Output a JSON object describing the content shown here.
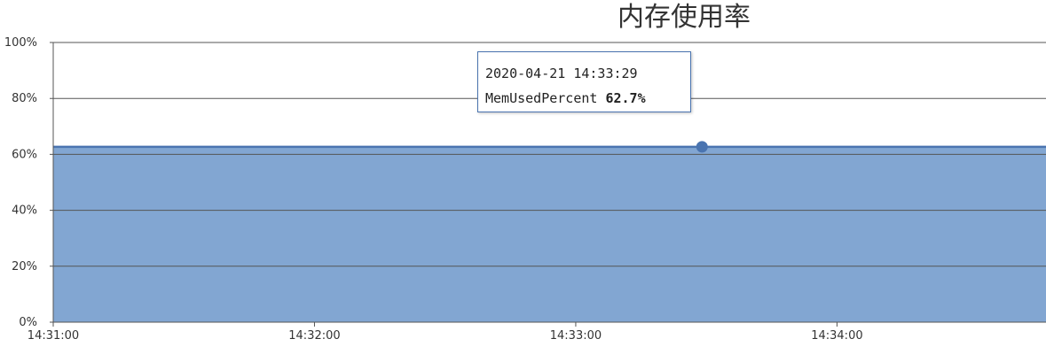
{
  "chart_data": {
    "type": "area",
    "title": "内存使用率",
    "x_ticks": [
      "14:31:00",
      "14:32:00",
      "14:33:00",
      "14:34:00"
    ],
    "y_ticks": [
      "0%",
      "20%",
      "40%",
      "60%",
      "80%",
      "100%"
    ],
    "ylim": [
      0,
      100
    ],
    "xlim": [
      "14:31:00",
      "14:34:48"
    ],
    "grid": true,
    "series": [
      {
        "x": [
          "14:31:00",
          "14:33:29",
          "14:34:48"
        ],
        "values": [
          62.7,
          62.7,
          62.7
        ],
        "fill_color": "#82a6d2",
        "line_color": "#4a74b0"
      }
    ],
    "highlight": {
      "x": "14:33:29",
      "value": 62.7,
      "marker_color": "#4a74b0"
    }
  },
  "tooltip": {
    "timestamp": "2020-04-21 14:33:29",
    "series_name": "MemUsedPercent",
    "value_text": "62.7%"
  }
}
